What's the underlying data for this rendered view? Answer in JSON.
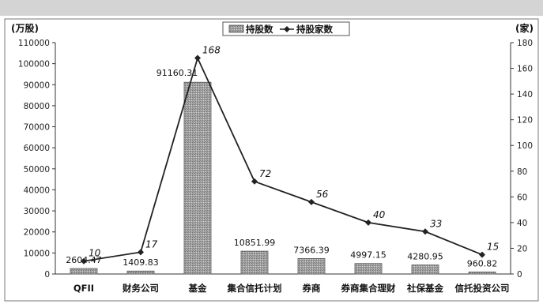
{
  "chart_data": {
    "type": "bar",
    "categories": [
      "QFII",
      "财务公司",
      "基金",
      "集合信托计划",
      "券商",
      "券商集合理财",
      "社保基金",
      "信托投资公司"
    ],
    "series": [
      {
        "name": "持股数",
        "type": "bar",
        "axis": "left",
        "values": [
          2604.47,
          1409.83,
          91160.31,
          10851.99,
          7366.39,
          4997.15,
          4280.95,
          960.82
        ],
        "labels": [
          "2604.47",
          "1409.83",
          "91160.31",
          "10851.99",
          "7366.39",
          "4997.15",
          "4280.95",
          "960.82"
        ]
      },
      {
        "name": "持股家数",
        "type": "line",
        "axis": "right",
        "values": [
          10,
          17,
          168,
          72,
          56,
          40,
          33,
          15
        ],
        "labels": [
          "10",
          "17",
          "168",
          "72",
          "56",
          "40",
          "33",
          "15"
        ]
      }
    ],
    "y_left": {
      "unit": "(万股)",
      "ylim": [
        0,
        110000
      ],
      "ticks": [
        "0",
        "10000",
        "20000",
        "30000",
        "40000",
        "50000",
        "60000",
        "70000",
        "80000",
        "90000",
        "100000",
        "110000"
      ]
    },
    "y_right": {
      "unit": "(家)",
      "ylim": [
        0,
        180
      ],
      "ticks": [
        "0",
        "20",
        "40",
        "60",
        "80",
        "100",
        "120",
        "140",
        "160",
        "180"
      ]
    },
    "legend": {
      "position": "top-center",
      "entries": [
        "持股数",
        "持股家数"
      ]
    },
    "grid": false,
    "colors": {
      "bar": "#9a9a9a",
      "line": "#222222",
      "frame": "#555555"
    }
  }
}
